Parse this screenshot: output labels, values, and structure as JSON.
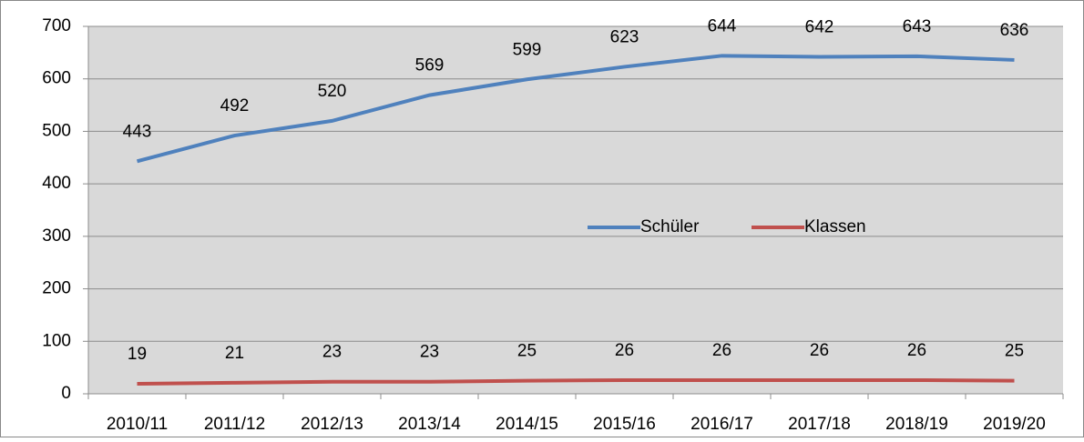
{
  "chart_data": {
    "type": "line",
    "categories": [
      "2010/11",
      "2011/12",
      "2012/13",
      "2013/14",
      "2014/15",
      "2015/16",
      "2016/17",
      "2017/18",
      "2018/19",
      "2019/20"
    ],
    "series": [
      {
        "name": "Schüler",
        "color": "#4f81bd",
        "values": [
          443,
          492,
          520,
          569,
          599,
          623,
          644,
          642,
          643,
          636
        ]
      },
      {
        "name": "Klassen",
        "color": "#c0504d",
        "values": [
          19,
          21,
          23,
          23,
          25,
          26,
          26,
          26,
          26,
          25
        ]
      }
    ],
    "ylim": [
      0,
      700
    ],
    "yticks": [
      0,
      100,
      200,
      300,
      400,
      500,
      600,
      700
    ],
    "grid": true,
    "legend": "center"
  }
}
